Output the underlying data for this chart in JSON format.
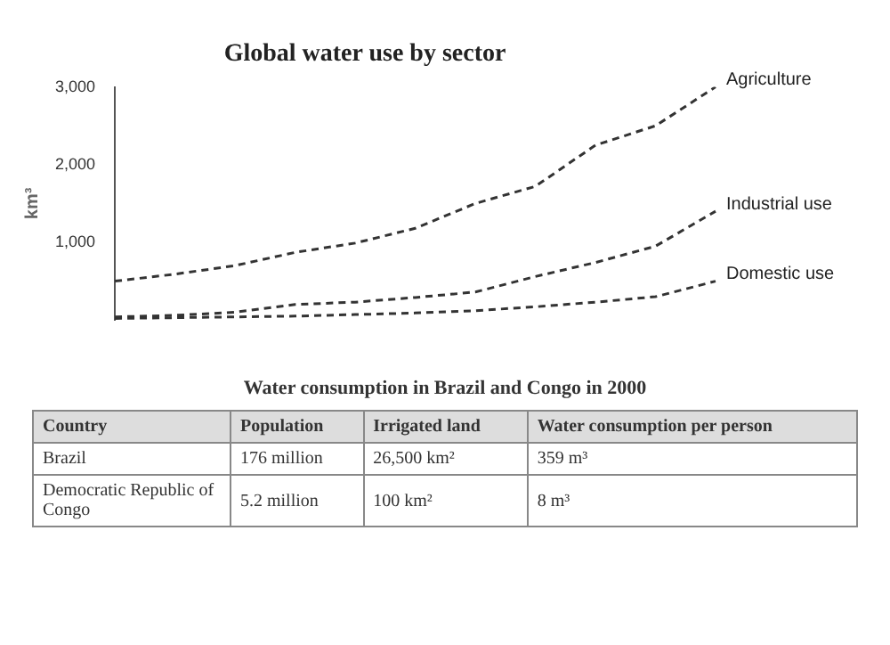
{
  "chart_data": [
    {
      "type": "line",
      "title": "Global water use by sector",
      "ylabel": "km³",
      "categories": [
        null,
        null,
        null,
        null,
        null,
        null,
        null,
        null,
        null,
        null,
        null
      ],
      "series": [
        {
          "name": "Agriculture",
          "color": "#333333",
          "values": [
            500,
            590,
            700,
            870,
            990,
            1180,
            1500,
            1720,
            2250,
            2500,
            3000
          ]
        },
        {
          "name": "Industrial use",
          "color": "#333333",
          "values": [
            40,
            60,
            100,
            200,
            230,
            290,
            360,
            560,
            740,
            950,
            1400
          ]
        },
        {
          "name": "Domestic use",
          "color": "#333333",
          "values": [
            20,
            30,
            40,
            50,
            70,
            90,
            120,
            170,
            230,
            300,
            500
          ]
        }
      ],
      "ylim": [
        0,
        3000
      ],
      "yticks": [
        {
          "value": 1000,
          "label": "1,000"
        },
        {
          "value": 2000,
          "label": "2,000"
        },
        {
          "value": 3000,
          "label": "3,000"
        }
      ],
      "grid": false,
      "legend": false,
      "line_style": "dashed",
      "marker": "none"
    },
    {
      "type": "other",
      "title": "Water consumption in Brazil and Congo in 2000",
      "annotations": [
        "Country",
        "Population",
        "Irrigated land",
        "Water consumption per person",
        "Brazil",
        "176 million",
        "26,500 km²",
        "359 m³",
        "Democratic Republic of Congo",
        "5.2 million",
        "100 km²",
        "8 m³"
      ]
    }
  ]
}
